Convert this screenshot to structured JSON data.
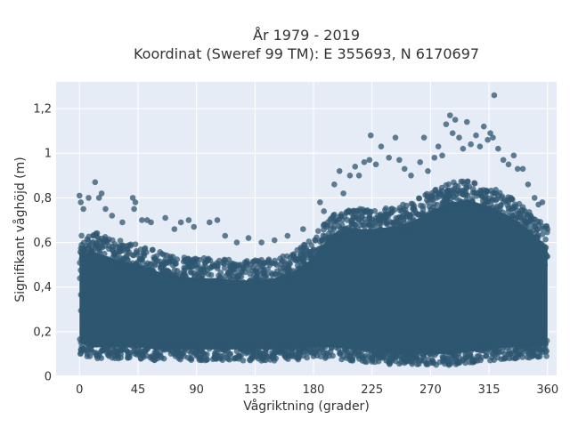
{
  "chart_data": {
    "type": "scatter",
    "title": "År 1979 - 2019",
    "subtitle": "Koordinat (Sweref 99 TM): E 355693, N 6170697",
    "xlabel": "Vågriktning (grader)",
    "ylabel": "Signifikant våghöjd (m)",
    "xlim": [
      -18,
      367
    ],
    "ylim": [
      0,
      1.32
    ],
    "xticks": [
      0,
      45,
      90,
      135,
      180,
      225,
      270,
      315,
      360
    ],
    "xtick_labels": [
      "0",
      "45",
      "90",
      "135",
      "180",
      "225",
      "270",
      "315",
      "360"
    ],
    "yticks": [
      0,
      0.2,
      0.4,
      0.6,
      0.8,
      1.0,
      1.2
    ],
    "ytick_labels": [
      "0",
      "0,2",
      "0,4",
      "0,6",
      "0,8",
      "1",
      "1,2"
    ],
    "grid": true,
    "legend": false,
    "marker_color": "#2e5670",
    "plot_background": "#e5ecf6",
    "dense_band": {
      "x": [
        0,
        10,
        20,
        30,
        45,
        60,
        75,
        90,
        105,
        120,
        135,
        150,
        165,
        175,
        185,
        195,
        210,
        225,
        240,
        255,
        270,
        285,
        300,
        315,
        330,
        345,
        360
      ],
      "y_low": [
        0.12,
        0.1,
        0.1,
        0.1,
        0.1,
        0.09,
        0.09,
        0.09,
        0.09,
        0.09,
        0.09,
        0.09,
        0.09,
        0.1,
        0.1,
        0.1,
        0.09,
        0.08,
        0.07,
        0.07,
        0.07,
        0.07,
        0.08,
        0.09,
        0.1,
        0.1,
        0.11
      ],
      "y_high": [
        0.6,
        0.62,
        0.6,
        0.58,
        0.56,
        0.53,
        0.51,
        0.5,
        0.5,
        0.49,
        0.49,
        0.5,
        0.53,
        0.57,
        0.63,
        0.7,
        0.72,
        0.72,
        0.73,
        0.75,
        0.8,
        0.84,
        0.85,
        0.82,
        0.78,
        0.72,
        0.64
      ]
    },
    "outliers": [
      {
        "x": 0,
        "y": 0.81
      },
      {
        "x": 1,
        "y": 0.78
      },
      {
        "x": 3,
        "y": 0.75
      },
      {
        "x": 7,
        "y": 0.8
      },
      {
        "x": 12,
        "y": 0.87
      },
      {
        "x": 15,
        "y": 0.8
      },
      {
        "x": 17,
        "y": 0.82
      },
      {
        "x": 20,
        "y": 0.75
      },
      {
        "x": 25,
        "y": 0.72
      },
      {
        "x": 33,
        "y": 0.69
      },
      {
        "x": 41,
        "y": 0.8
      },
      {
        "x": 43,
        "y": 0.78
      },
      {
        "x": 42,
        "y": 0.75
      },
      {
        "x": 48,
        "y": 0.7
      },
      {
        "x": 52,
        "y": 0.7
      },
      {
        "x": 55,
        "y": 0.69
      },
      {
        "x": 66,
        "y": 0.71
      },
      {
        "x": 73,
        "y": 0.66
      },
      {
        "x": 78,
        "y": 0.69
      },
      {
        "x": 84,
        "y": 0.7
      },
      {
        "x": 88,
        "y": 0.67
      },
      {
        "x": 100,
        "y": 0.69
      },
      {
        "x": 106,
        "y": 0.7
      },
      {
        "x": 112,
        "y": 0.63
      },
      {
        "x": 121,
        "y": 0.6
      },
      {
        "x": 130,
        "y": 0.62
      },
      {
        "x": 140,
        "y": 0.6
      },
      {
        "x": 150,
        "y": 0.61
      },
      {
        "x": 160,
        "y": 0.63
      },
      {
        "x": 172,
        "y": 0.66
      },
      {
        "x": 185,
        "y": 0.78
      },
      {
        "x": 188,
        "y": 0.74
      },
      {
        "x": 196,
        "y": 0.86
      },
      {
        "x": 200,
        "y": 0.92
      },
      {
        "x": 203,
        "y": 0.82
      },
      {
        "x": 208,
        "y": 0.9
      },
      {
        "x": 212,
        "y": 0.94
      },
      {
        "x": 215,
        "y": 0.9
      },
      {
        "x": 219,
        "y": 0.96
      },
      {
        "x": 223,
        "y": 0.97
      },
      {
        "x": 224,
        "y": 1.08
      },
      {
        "x": 228,
        "y": 0.95
      },
      {
        "x": 232,
        "y": 1.03
      },
      {
        "x": 238,
        "y": 0.98
      },
      {
        "x": 243,
        "y": 1.07
      },
      {
        "x": 246,
        "y": 0.97
      },
      {
        "x": 250,
        "y": 0.93
      },
      {
        "x": 255,
        "y": 0.9
      },
      {
        "x": 262,
        "y": 0.96
      },
      {
        "x": 265,
        "y": 1.07
      },
      {
        "x": 268,
        "y": 0.92
      },
      {
        "x": 273,
        "y": 0.98
      },
      {
        "x": 276,
        "y": 1.03
      },
      {
        "x": 279,
        "y": 0.99
      },
      {
        "x": 282,
        "y": 1.13
      },
      {
        "x": 285,
        "y": 1.17
      },
      {
        "x": 287,
        "y": 1.09
      },
      {
        "x": 289,
        "y": 1.15
      },
      {
        "x": 292,
        "y": 1.07
      },
      {
        "x": 295,
        "y": 1.02
      },
      {
        "x": 298,
        "y": 1.14
      },
      {
        "x": 301,
        "y": 1.04
      },
      {
        "x": 305,
        "y": 1.08
      },
      {
        "x": 308,
        "y": 1.03
      },
      {
        "x": 311,
        "y": 1.12
      },
      {
        "x": 314,
        "y": 1.06
      },
      {
        "x": 316,
        "y": 1.09
      },
      {
        "x": 318,
        "y": 1.07
      },
      {
        "x": 319,
        "y": 1.26
      },
      {
        "x": 322,
        "y": 1.02
      },
      {
        "x": 326,
        "y": 0.97
      },
      {
        "x": 330,
        "y": 0.95
      },
      {
        "x": 334,
        "y": 0.99
      },
      {
        "x": 337,
        "y": 0.93
      },
      {
        "x": 341,
        "y": 0.93
      },
      {
        "x": 345,
        "y": 0.86
      },
      {
        "x": 350,
        "y": 0.8
      },
      {
        "x": 353,
        "y": 0.77
      },
      {
        "x": 356,
        "y": 0.78
      },
      {
        "x": 360,
        "y": 0.66
      },
      {
        "x": 236,
        "y": 0.07
      },
      {
        "x": 250,
        "y": 0.06
      },
      {
        "x": 263,
        "y": 0.07
      },
      {
        "x": 271,
        "y": 0.06
      },
      {
        "x": 280,
        "y": 0.07
      },
      {
        "x": 292,
        "y": 0.06
      },
      {
        "x": 302,
        "y": 0.07
      },
      {
        "x": 335,
        "y": 0.08
      },
      {
        "x": 8,
        "y": 0.09
      },
      {
        "x": 30,
        "y": 0.08
      },
      {
        "x": 60,
        "y": 0.08
      },
      {
        "x": 120,
        "y": 0.08
      },
      {
        "x": 180,
        "y": 0.09
      },
      {
        "x": 210,
        "y": 0.07
      }
    ]
  }
}
